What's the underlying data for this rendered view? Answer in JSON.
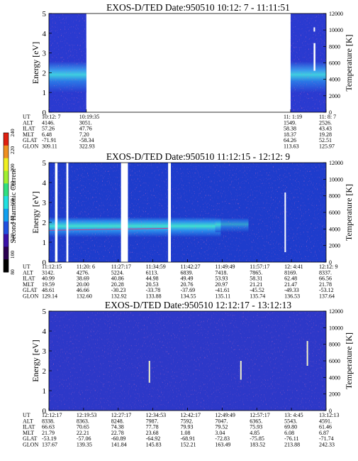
{
  "chart_data": [
    {
      "type": "heatmap",
      "title": "EXOS-D/TED   Date:950510  10:12: 7 - 11:11:51",
      "ylabel_left": "Energy [eV]",
      "ylabel_right": "Temperature [K]",
      "ylim_left": [
        0,
        5
      ],
      "yticks_left": [
        "0",
        "1",
        "2",
        "3",
        "4",
        "5"
      ],
      "ylim_right": [
        0,
        12000
      ],
      "yticks_right": [
        "0",
        "2000",
        "4000",
        "6000",
        "8000",
        "10000",
        "12000"
      ],
      "row_labels": [
        "UT",
        "ALT",
        "ILAT",
        "MLT",
        "GLAT",
        "GLON"
      ],
      "columns": [
        {
          "pos": 0.0,
          "values": [
            "10:12: 7",
            "4146.",
            "57.26",
            "6.48",
            "-71.91",
            "309.11"
          ]
        },
        {
          "pos": 0.135,
          "values": [
            "10:19:35",
            "3051.",
            "47.76",
            "7.20",
            "-58.34",
            "322.93"
          ]
        },
        {
          "pos": 0.872,
          "values": [
            "11: 1:19",
            "1549.",
            "58.38",
            "18.37",
            "64.26",
            "113.63"
          ]
        },
        {
          "pos": 1.0,
          "values": [
            "11: 8: 7",
            "2526.",
            "43.43",
            "19.28",
            "52.51",
            "125.97"
          ]
        }
      ],
      "data_segments": [
        [
          0.0,
          0.135
        ],
        [
          0.872,
          1.0
        ]
      ]
    },
    {
      "type": "heatmap",
      "title": "EXOS-D/TED   Date:950510  11:12:15 - 12:12: 9",
      "ylabel_left": "Energy [eV]",
      "ylabel_right": "Temperature [K]",
      "ylim_left": [
        0,
        5
      ],
      "yticks_left": [
        "0",
        "1",
        "2",
        "3",
        "4",
        "5"
      ],
      "ylim_right": [
        0,
        12000
      ],
      "yticks_right": [
        "0",
        "2000",
        "4000",
        "6000",
        "8000",
        "10000",
        "12000"
      ],
      "row_labels": [
        "UT",
        "ALT",
        "ILAT",
        "MLT",
        "GLAT",
        "GLON"
      ],
      "columns": [
        {
          "pos": 0.0,
          "values": [
            "11:12:15",
            "3142.",
            "40.99",
            "19.59",
            "48.61",
            "129.14"
          ]
        },
        {
          "pos": 0.125,
          "values": [
            "11:20: 6",
            "4276.",
            "38.69",
            "20.00",
            "46.66",
            "132.60"
          ]
        },
        {
          "pos": 0.25,
          "values": [
            "11:27:17",
            "5224.",
            "40.86",
            "20.28",
            "-30.23",
            "132.92"
          ]
        },
        {
          "pos": 0.375,
          "values": [
            "11:34:59",
            "6113.",
            "44.98",
            "20.53",
            "-33.78",
            "133.88"
          ]
        },
        {
          "pos": 0.5,
          "values": [
            "11:42:27",
            "6839.",
            "49.49",
            "20.76",
            "-37.69",
            "134.55"
          ]
        },
        {
          "pos": 0.625,
          "values": [
            "11:49:49",
            "7418.",
            "53.93",
            "20.97",
            "-41.61",
            "135.11"
          ]
        },
        {
          "pos": 0.75,
          "values": [
            "11:57:17",
            "7865.",
            "58.31",
            "21.21",
            "-45.52",
            "135.74"
          ]
        },
        {
          "pos": 0.875,
          "values": [
            "12: 4:41",
            "8169.",
            "62.48",
            "21.47",
            "-49.33",
            "136.53"
          ]
        },
        {
          "pos": 1.0,
          "values": [
            "12:12: 9",
            "8337.",
            "66.56",
            "21.78",
            "-53.12",
            "137.64"
          ]
        }
      ],
      "gaps": [
        [
          0.022,
          0.031
        ],
        [
          0.063,
          0.07
        ],
        [
          0.26,
          0.285
        ],
        [
          0.43,
          0.44
        ]
      ]
    },
    {
      "type": "heatmap",
      "title": "EXOS-D/TED   Date:950510  12:12:17 - 13:12:13",
      "ylabel_left": "Energy [eV]",
      "ylabel_right": "Temperature [K]",
      "ylim_left": [
        0,
        5
      ],
      "yticks_left": [
        "0",
        "1",
        "2",
        "3",
        "4",
        "5"
      ],
      "ylim_right": [
        0,
        12000
      ],
      "yticks_right": [
        "0",
        "2000",
        "4000",
        "6000",
        "8000",
        "10000",
        "12000"
      ],
      "row_labels": [
        "UT",
        "ALT",
        "ILAT",
        "MLT",
        "GLAT",
        "GLON"
      ],
      "columns": [
        {
          "pos": 0.0,
          "values": [
            "12:12:17",
            "8338.",
            "66.63",
            "21.79",
            "-53.19",
            "137.67"
          ]
        },
        {
          "pos": 0.125,
          "values": [
            "12:19:53",
            "8363.",
            "70.65",
            "22.21",
            "-57.06",
            "139.35"
          ]
        },
        {
          "pos": 0.25,
          "values": [
            "12:27:17",
            "8248.",
            "74.38",
            "22.78",
            "-60.89",
            "141.84"
          ]
        },
        {
          "pos": 0.375,
          "values": [
            "12:34:53",
            "7987.",
            "77.78",
            "23.68",
            "-64.92",
            "145.83"
          ]
        },
        {
          "pos": 0.5,
          "values": [
            "12:42:17",
            "7592.",
            "79.93",
            "1.08",
            "-68.91",
            "152.21"
          ]
        },
        {
          "pos": 0.625,
          "values": [
            "12:49:49",
            "7047.",
            "79.52",
            "3.04",
            "-72.83",
            "163.49"
          ]
        },
        {
          "pos": 0.75,
          "values": [
            "12:57:17",
            "6365.",
            "75.93",
            "4.85",
            "-75.85",
            "183.52"
          ]
        },
        {
          "pos": 0.875,
          "values": [
            "13: 4:45",
            "5543.",
            "69.80",
            "6.08",
            "-76.11",
            "213.88"
          ]
        },
        {
          "pos": 1.0,
          "values": [
            "13:12:13",
            "4591.",
            "61.46",
            "6.87",
            "-71.74",
            "242.33"
          ]
        }
      ],
      "data_segments": [
        [
          0.0,
          1.0
        ]
      ]
    }
  ],
  "colorbar": {
    "label": "Second Harmonic Current",
    "range": [
      80,
      240
    ],
    "ticks": [
      "80",
      "100",
      "120",
      "140",
      "160",
      "180",
      "200",
      "220",
      "240"
    ],
    "colors": [
      "#000000",
      "#2a0050",
      "#3a10a8",
      "#2050e0",
      "#10a0f0",
      "#20e0e0",
      "#30e080",
      "#a0f030",
      "#f0f020",
      "#f09020",
      "#e02010"
    ]
  }
}
